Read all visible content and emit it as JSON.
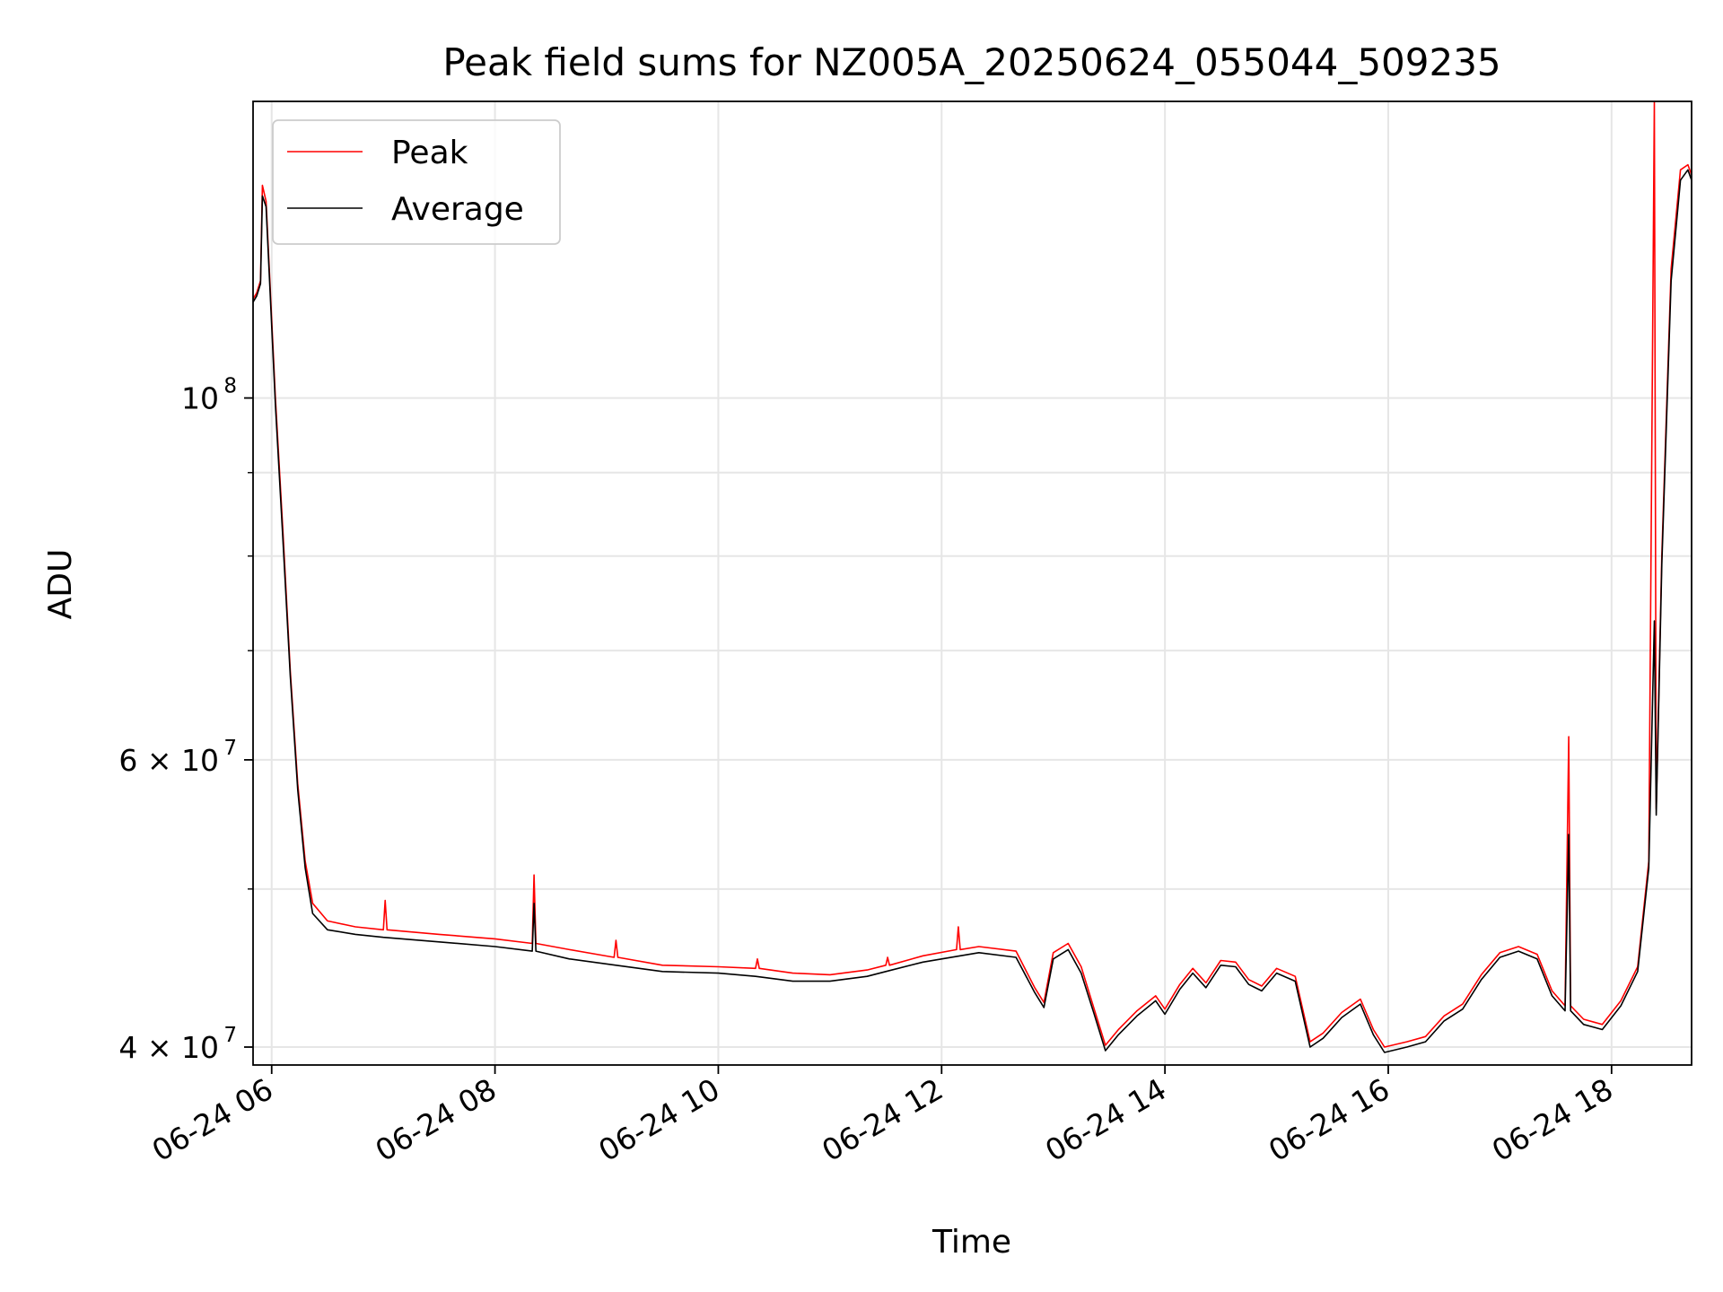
{
  "chart_data": {
    "type": "line",
    "title": "Peak field sums for NZ005A_20250624_055044_509235",
    "xlabel": "Time",
    "ylabel": "ADU",
    "yscale": "log",
    "xlim": [
      "2025-06-24 05:50",
      "2025-06-24 18:43"
    ],
    "ylim": [
      39000000,
      152000000
    ],
    "grid": true,
    "legend_position": "top-left",
    "x_ticks": [
      {
        "x": "2025-06-24 06:00",
        "label": "06-24 06"
      },
      {
        "x": "2025-06-24 08:00",
        "label": "06-24 08"
      },
      {
        "x": "2025-06-24 10:00",
        "label": "06-24 10"
      },
      {
        "x": "2025-06-24 12:00",
        "label": "06-24 12"
      },
      {
        "x": "2025-06-24 14:00",
        "label": "06-24 14"
      },
      {
        "x": "2025-06-24 16:00",
        "label": "06-24 16"
      },
      {
        "x": "2025-06-24 18:00",
        "label": "06-24 18"
      }
    ],
    "y_major_ticks": [
      {
        "y": 40000000,
        "base": "4 × 10",
        "exp": "7"
      },
      {
        "y": 60000000,
        "base": "6 × 10",
        "exp": "7"
      },
      {
        "y": 100000000,
        "base": "10",
        "exp": "8"
      }
    ],
    "y_minor_ticks": [
      50000000,
      70000000,
      80000000,
      90000000
    ],
    "series": [
      {
        "name": "Peak",
        "color": "#ff0000",
        "points": [
          [
            "2025-06-24 05:50",
            115000000
          ],
          [
            "2025-06-24 05:52",
            116000000
          ],
          [
            "2025-06-24 05:54",
            118000000
          ],
          [
            "2025-06-24 05:55",
            135000000
          ],
          [
            "2025-06-24 05:57",
            132000000
          ],
          [
            "2025-06-24 05:59",
            118000000
          ],
          [
            "2025-06-24 06:02",
            100000000
          ],
          [
            "2025-06-24 06:06",
            83000000
          ],
          [
            "2025-06-24 06:10",
            68000000
          ],
          [
            "2025-06-24 06:14",
            58000000
          ],
          [
            "2025-06-24 06:18",
            52000000
          ],
          [
            "2025-06-24 06:22",
            49000000
          ],
          [
            "2025-06-24 06:30",
            47800000
          ],
          [
            "2025-06-24 06:45",
            47400000
          ],
          [
            "2025-06-24 07:00",
            47200000
          ],
          [
            "2025-06-24 07:01",
            49200000
          ],
          [
            "2025-06-24 07:02",
            47200000
          ],
          [
            "2025-06-24 07:30",
            46900000
          ],
          [
            "2025-06-24 08:00",
            46600000
          ],
          [
            "2025-06-24 08:20",
            46300000
          ],
          [
            "2025-06-24 08:21",
            51000000
          ],
          [
            "2025-06-24 08:22",
            46300000
          ],
          [
            "2025-06-24 08:40",
            45900000
          ],
          [
            "2025-06-24 09:04",
            45400000
          ],
          [
            "2025-06-24 09:05",
            46500000
          ],
          [
            "2025-06-24 09:06",
            45400000
          ],
          [
            "2025-06-24 09:30",
            44900000
          ],
          [
            "2025-06-24 10:00",
            44800000
          ],
          [
            "2025-06-24 10:20",
            44700000
          ],
          [
            "2025-06-24 10:21",
            45300000
          ],
          [
            "2025-06-24 10:22",
            44700000
          ],
          [
            "2025-06-24 10:40",
            44400000
          ],
          [
            "2025-06-24 11:00",
            44300000
          ],
          [
            "2025-06-24 11:20",
            44600000
          ],
          [
            "2025-06-24 11:30",
            44900000
          ],
          [
            "2025-06-24 11:31",
            45400000
          ],
          [
            "2025-06-24 11:32",
            44900000
          ],
          [
            "2025-06-24 11:50",
            45500000
          ],
          [
            "2025-06-24 12:08",
            45900000
          ],
          [
            "2025-06-24 12:09",
            47400000
          ],
          [
            "2025-06-24 12:10",
            45900000
          ],
          [
            "2025-06-24 12:20",
            46100000
          ],
          [
            "2025-06-24 12:40",
            45800000
          ],
          [
            "2025-06-24 12:50",
            43500000
          ],
          [
            "2025-06-24 12:55",
            42600000
          ],
          [
            "2025-06-24 13:00",
            45700000
          ],
          [
            "2025-06-24 13:08",
            46300000
          ],
          [
            "2025-06-24 13:15",
            44800000
          ],
          [
            "2025-06-24 13:22",
            42200000
          ],
          [
            "2025-06-24 13:28",
            40100000
          ],
          [
            "2025-06-24 13:35",
            41000000
          ],
          [
            "2025-06-24 13:45",
            42100000
          ],
          [
            "2025-06-24 13:55",
            43000000
          ],
          [
            "2025-06-24 14:00",
            42200000
          ],
          [
            "2025-06-24 14:08",
            43700000
          ],
          [
            "2025-06-24 14:15",
            44700000
          ],
          [
            "2025-06-24 14:22",
            43800000
          ],
          [
            "2025-06-24 14:30",
            45200000
          ],
          [
            "2025-06-24 14:38",
            45100000
          ],
          [
            "2025-06-24 14:45",
            44000000
          ],
          [
            "2025-06-24 14:52",
            43600000
          ],
          [
            "2025-06-24 15:00",
            44700000
          ],
          [
            "2025-06-24 15:10",
            44200000
          ],
          [
            "2025-06-24 15:18",
            40300000
          ],
          [
            "2025-06-24 15:25",
            40800000
          ],
          [
            "2025-06-24 15:35",
            42000000
          ],
          [
            "2025-06-24 15:45",
            42800000
          ],
          [
            "2025-06-24 15:52",
            41000000
          ],
          [
            "2025-06-24 15:58",
            40000000
          ],
          [
            "2025-06-24 16:10",
            40300000
          ],
          [
            "2025-06-24 16:20",
            40600000
          ],
          [
            "2025-06-24 16:30",
            41800000
          ],
          [
            "2025-06-24 16:40",
            42500000
          ],
          [
            "2025-06-24 16:50",
            44300000
          ],
          [
            "2025-06-24 17:00",
            45700000
          ],
          [
            "2025-06-24 17:10",
            46100000
          ],
          [
            "2025-06-24 17:20",
            45600000
          ],
          [
            "2025-06-24 17:28",
            43300000
          ],
          [
            "2025-06-24 17:35",
            42400000
          ],
          [
            "2025-06-24 17:37",
            62000000
          ],
          [
            "2025-06-24 17:38",
            42400000
          ],
          [
            "2025-06-24 17:45",
            41600000
          ],
          [
            "2025-06-24 17:55",
            41300000
          ],
          [
            "2025-06-24 18:05",
            42700000
          ],
          [
            "2025-06-24 18:14",
            44800000
          ],
          [
            "2025-06-24 18:20",
            52000000
          ],
          [
            "2025-06-24 18:23",
            152000000
          ],
          [
            "2025-06-24 18:24",
            56000000
          ],
          [
            "2025-06-24 18:27",
            80000000
          ],
          [
            "2025-06-24 18:32",
            120000000
          ],
          [
            "2025-06-24 18:37",
            138000000
          ],
          [
            "2025-06-24 18:41",
            139000000
          ],
          [
            "2025-06-24 18:43",
            137000000
          ]
        ]
      },
      {
        "name": "Average",
        "color": "#000000",
        "points": [
          [
            "2025-06-24 05:50",
            114500000
          ],
          [
            "2025-06-24 05:52",
            115500000
          ],
          [
            "2025-06-24 05:54",
            117500000
          ],
          [
            "2025-06-24 05:55",
            133000000
          ],
          [
            "2025-06-24 05:57",
            131000000
          ],
          [
            "2025-06-24 05:59",
            117000000
          ],
          [
            "2025-06-24 06:02",
            99000000
          ],
          [
            "2025-06-24 06:06",
            82000000
          ],
          [
            "2025-06-24 06:10",
            67500000
          ],
          [
            "2025-06-24 06:14",
            57500000
          ],
          [
            "2025-06-24 06:18",
            51500000
          ],
          [
            "2025-06-24 06:22",
            48300000
          ],
          [
            "2025-06-24 06:30",
            47200000
          ],
          [
            "2025-06-24 06:45",
            46900000
          ],
          [
            "2025-06-24 07:00",
            46700000
          ],
          [
            "2025-06-24 07:30",
            46400000
          ],
          [
            "2025-06-24 08:00",
            46100000
          ],
          [
            "2025-06-24 08:20",
            45800000
          ],
          [
            "2025-06-24 08:21",
            49000000
          ],
          [
            "2025-06-24 08:22",
            45800000
          ],
          [
            "2025-06-24 08:40",
            45300000
          ],
          [
            "2025-06-24 09:05",
            44900000
          ],
          [
            "2025-06-24 09:30",
            44500000
          ],
          [
            "2025-06-24 10:00",
            44400000
          ],
          [
            "2025-06-24 10:20",
            44200000
          ],
          [
            "2025-06-24 10:40",
            43900000
          ],
          [
            "2025-06-24 11:00",
            43900000
          ],
          [
            "2025-06-24 11:20",
            44200000
          ],
          [
            "2025-06-24 11:30",
            44500000
          ],
          [
            "2025-06-24 11:50",
            45100000
          ],
          [
            "2025-06-24 12:10",
            45500000
          ],
          [
            "2025-06-24 12:20",
            45700000
          ],
          [
            "2025-06-24 12:40",
            45400000
          ],
          [
            "2025-06-24 12:50",
            43200000
          ],
          [
            "2025-06-24 12:55",
            42300000
          ],
          [
            "2025-06-24 13:00",
            45300000
          ],
          [
            "2025-06-24 13:08",
            45900000
          ],
          [
            "2025-06-24 13:15",
            44400000
          ],
          [
            "2025-06-24 13:22",
            41900000
          ],
          [
            "2025-06-24 13:28",
            39800000
          ],
          [
            "2025-06-24 13:35",
            40700000
          ],
          [
            "2025-06-24 13:45",
            41800000
          ],
          [
            "2025-06-24 13:55",
            42700000
          ],
          [
            "2025-06-24 14:00",
            41900000
          ],
          [
            "2025-06-24 14:08",
            43400000
          ],
          [
            "2025-06-24 14:15",
            44400000
          ],
          [
            "2025-06-24 14:22",
            43500000
          ],
          [
            "2025-06-24 14:30",
            44900000
          ],
          [
            "2025-06-24 14:38",
            44800000
          ],
          [
            "2025-06-24 14:45",
            43700000
          ],
          [
            "2025-06-24 14:52",
            43300000
          ],
          [
            "2025-06-24 15:00",
            44400000
          ],
          [
            "2025-06-24 15:10",
            43900000
          ],
          [
            "2025-06-24 15:18",
            40000000
          ],
          [
            "2025-06-24 15:25",
            40500000
          ],
          [
            "2025-06-24 15:35",
            41700000
          ],
          [
            "2025-06-24 15:45",
            42500000
          ],
          [
            "2025-06-24 15:52",
            40700000
          ],
          [
            "2025-06-24 15:58",
            39700000
          ],
          [
            "2025-06-24 16:10",
            40000000
          ],
          [
            "2025-06-24 16:20",
            40300000
          ],
          [
            "2025-06-24 16:30",
            41500000
          ],
          [
            "2025-06-24 16:40",
            42200000
          ],
          [
            "2025-06-24 16:50",
            44000000
          ],
          [
            "2025-06-24 17:00",
            45400000
          ],
          [
            "2025-06-24 17:10",
            45800000
          ],
          [
            "2025-06-24 17:20",
            45300000
          ],
          [
            "2025-06-24 17:28",
            43000000
          ],
          [
            "2025-06-24 17:35",
            42100000
          ],
          [
            "2025-06-24 17:37",
            54000000
          ],
          [
            "2025-06-24 17:38",
            42100000
          ],
          [
            "2025-06-24 17:45",
            41300000
          ],
          [
            "2025-06-24 17:55",
            41000000
          ],
          [
            "2025-06-24 18:05",
            42400000
          ],
          [
            "2025-06-24 18:14",
            44500000
          ],
          [
            "2025-06-24 18:20",
            51500000
          ],
          [
            "2025-06-24 18:23",
            73000000
          ],
          [
            "2025-06-24 18:24",
            55500000
          ],
          [
            "2025-06-24 18:27",
            79000000
          ],
          [
            "2025-06-24 18:32",
            118000000
          ],
          [
            "2025-06-24 18:37",
            136000000
          ],
          [
            "2025-06-24 18:41",
            138000000
          ],
          [
            "2025-06-24 18:43",
            136000000
          ]
        ]
      }
    ]
  }
}
